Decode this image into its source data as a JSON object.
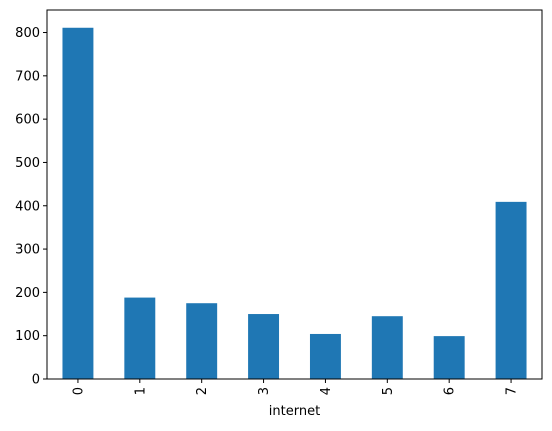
{
  "chart_data": {
    "type": "bar",
    "categories": [
      "0",
      "1",
      "2",
      "3",
      "4",
      "5",
      "6",
      "7"
    ],
    "values": [
      811,
      188,
      175,
      150,
      104,
      145,
      99,
      409
    ],
    "xlabel": "internet",
    "ylabel": "",
    "title": "",
    "ylim": [
      0,
      852
    ],
    "yticks": [
      0,
      100,
      200,
      300,
      400,
      500,
      600,
      700,
      800
    ],
    "bar_color": "#1f77b4",
    "grid": false,
    "legend": "none",
    "x_tick_rotation": "vertical"
  }
}
